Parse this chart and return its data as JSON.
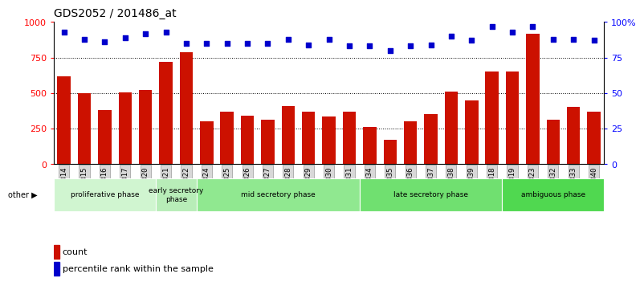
{
  "title": "GDS2052 / 201486_at",
  "samples": [
    "GSM109814",
    "GSM109815",
    "GSM109816",
    "GSM109817",
    "GSM109820",
    "GSM109821",
    "GSM109822",
    "GSM109824",
    "GSM109825",
    "GSM109826",
    "GSM109827",
    "GSM109828",
    "GSM109829",
    "GSM109830",
    "GSM109831",
    "GSM109834",
    "GSM109835",
    "GSM109836",
    "GSM109837",
    "GSM109838",
    "GSM109839",
    "GSM109818",
    "GSM109819",
    "GSM109823",
    "GSM109832",
    "GSM109833",
    "GSM109840"
  ],
  "counts": [
    620,
    500,
    380,
    505,
    520,
    720,
    790,
    300,
    370,
    340,
    315,
    410,
    370,
    335,
    370,
    260,
    170,
    300,
    355,
    510,
    450,
    650,
    650,
    920,
    315,
    405,
    370
  ],
  "percentiles": [
    93,
    88,
    86,
    89,
    92,
    93,
    85,
    85,
    85,
    85,
    85,
    88,
    84,
    88,
    83,
    83,
    80,
    83,
    84,
    90,
    87,
    97,
    93,
    97,
    88,
    88,
    87
  ],
  "bar_color": "#cc1100",
  "dot_color": "#0000cc",
  "ylim_left": [
    0,
    1000
  ],
  "ylim_right": [
    0,
    100
  ],
  "yticks_left": [
    0,
    250,
    500,
    750,
    1000
  ],
  "yticks_right": [
    0,
    25,
    50,
    75,
    100
  ],
  "yticks_right_labels": [
    "0",
    "25",
    "50",
    "75",
    "100%"
  ],
  "grid_values": [
    250,
    500,
    750
  ],
  "phases": [
    {
      "label": "proliferative phase",
      "start": 0,
      "end": 5,
      "color": "#d0f5d0"
    },
    {
      "label": "early secretory\nphase",
      "start": 5,
      "end": 7,
      "color": "#b8edb8"
    },
    {
      "label": "mid secretory phase",
      "start": 7,
      "end": 15,
      "color": "#90e890"
    },
    {
      "label": "late secretory phase",
      "start": 15,
      "end": 22,
      "color": "#70e070"
    },
    {
      "label": "ambiguous phase",
      "start": 22,
      "end": 27,
      "color": "#50d850"
    }
  ],
  "other_label": "other",
  "legend_count_label": "count",
  "legend_pct_label": "percentile rank within the sample",
  "title_fontsize": 10,
  "tick_fontsize": 6.5
}
